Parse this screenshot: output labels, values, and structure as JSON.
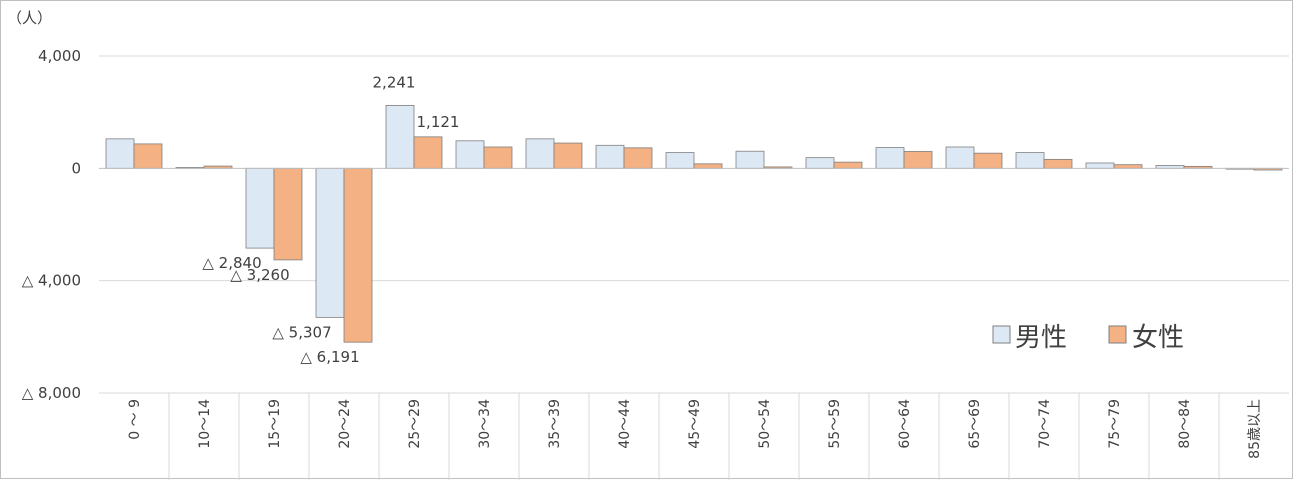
{
  "chart_data": {
    "type": "bar",
    "ylabel": "（人）",
    "ylim": [
      -8000,
      4000
    ],
    "y_ticks": [
      {
        "value": 4000,
        "label": "4,000"
      },
      {
        "value": 0,
        "label": "0"
      },
      {
        "value": -4000,
        "label": "△ 4,000"
      },
      {
        "value": -8000,
        "label": "△ 8,000"
      }
    ],
    "grid": true,
    "legend_position": "right",
    "categories": [
      "0 ～ 9",
      "10～14",
      "15～19",
      "20～24",
      "25～29",
      "30～34",
      "35～39",
      "40～44",
      "45～49",
      "50～54",
      "55～59",
      "60～64",
      "65～69",
      "70～74",
      "75～79",
      "80～84",
      "85歳以上"
    ],
    "series": [
      {
        "name": "男性",
        "color": "#dde8f5",
        "stroke": "#7f7f7f",
        "values": [
          1050,
          30,
          -2840,
          -5307,
          2241,
          980,
          1050,
          820,
          560,
          610,
          380,
          740,
          760,
          560,
          190,
          100,
          -20
        ]
      },
      {
        "name": "女性",
        "color": "#f4b183",
        "stroke": "#7f7f7f",
        "values": [
          870,
          80,
          -3260,
          -6191,
          1121,
          760,
          900,
          730,
          160,
          50,
          220,
          600,
          540,
          320,
          130,
          70,
          -60
        ]
      }
    ],
    "data_labels": [
      {
        "series": 0,
        "index": 2,
        "text": "△ 2,840"
      },
      {
        "series": 1,
        "index": 2,
        "text": "△ 3,260"
      },
      {
        "series": 0,
        "index": 3,
        "text": "△ 5,307"
      },
      {
        "series": 1,
        "index": 3,
        "text": "△ 6,191"
      },
      {
        "series": 0,
        "index": 4,
        "text": "2,241"
      },
      {
        "series": 1,
        "index": 4,
        "text": "1,121"
      }
    ]
  }
}
